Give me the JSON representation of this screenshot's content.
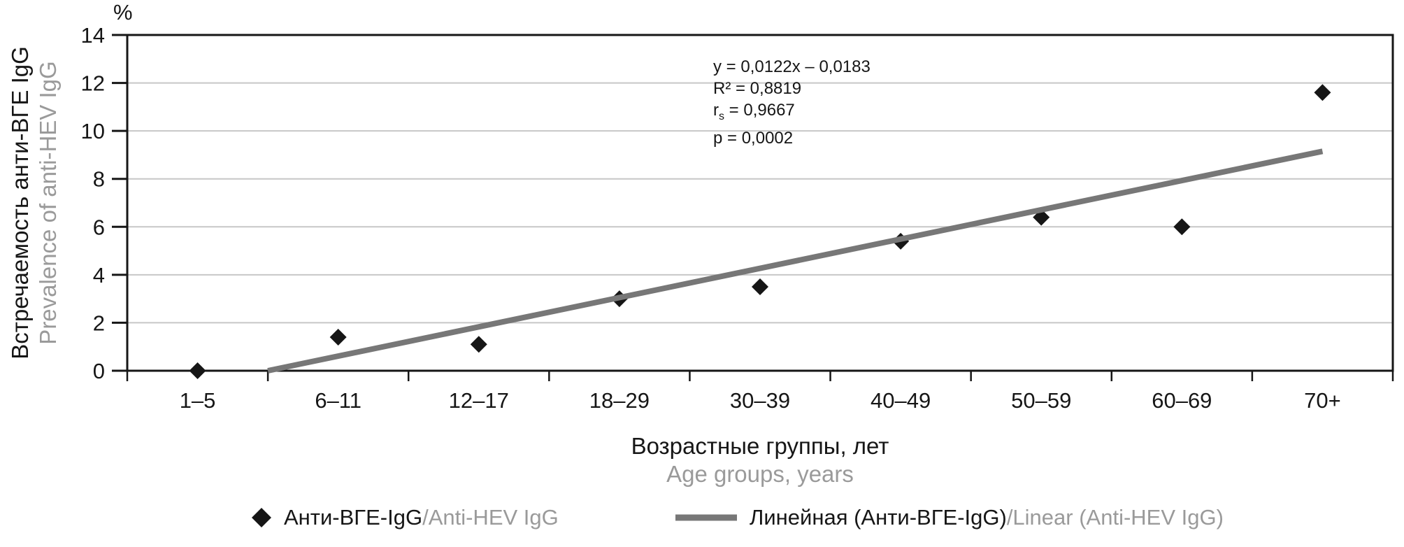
{
  "chart_data": {
    "type": "scatter",
    "categories": [
      "1–5",
      "6–11",
      "12–17",
      "18–29",
      "30–39",
      "40–49",
      "50–59",
      "60–69",
      "70+"
    ],
    "series": [
      {
        "name": "Анти-ВГЕ-IgG/Anti-HEV IgG",
        "marker": "diamond",
        "values": [
          0,
          1.4,
          1.1,
          3.0,
          3.5,
          5.4,
          6.4,
          6.0,
          11.6
        ]
      }
    ],
    "trendline": {
      "name": "Линейная (Анти-ВГЕ-IgG)/Linear (Anti-HEV IgG)",
      "slope": 1.22,
      "intercept": -1.83,
      "x_domain": [
        1,
        9
      ],
      "clip_y_min": 0
    },
    "ylim": [
      0,
      14
    ],
    "yticks": [
      0,
      2,
      4,
      6,
      8,
      10,
      12,
      14
    ],
    "unit": "%",
    "grid": true,
    "legend_position": "bottom",
    "xlabel_ru": "Возрастные группы, лет",
    "xlabel_en": "Age groups, years",
    "ylabel_ru": "Встречаемость анти-ВГЕ IgG",
    "ylabel_en": "Prevalence of anti-HEV IgG",
    "annotation": {
      "equation": "y = 0,0122x – 0,0183",
      "r2": "R² = 0,8819",
      "rs_base": "r",
      "rs_sub": "s",
      "rs_value": " = 0,9667",
      "p": "p = 0,0002"
    }
  },
  "legend": {
    "items": [
      {
        "swatch": "diamond",
        "label_ru": "Анти-ВГЕ-IgG",
        "label_en": "/Anti-HEV IgG"
      },
      {
        "swatch": "line",
        "label_ru": "Линейная (Анти-ВГЕ-IgG)",
        "label_en": "/Linear (Anti-HEV IgG)"
      }
    ]
  },
  "colors": {
    "marker": "#161616",
    "trend": "#777777",
    "grid": "#c7c7c7",
    "axis": "#161616",
    "text_primary": "#161616",
    "text_secondary": "#9a9a9a"
  }
}
